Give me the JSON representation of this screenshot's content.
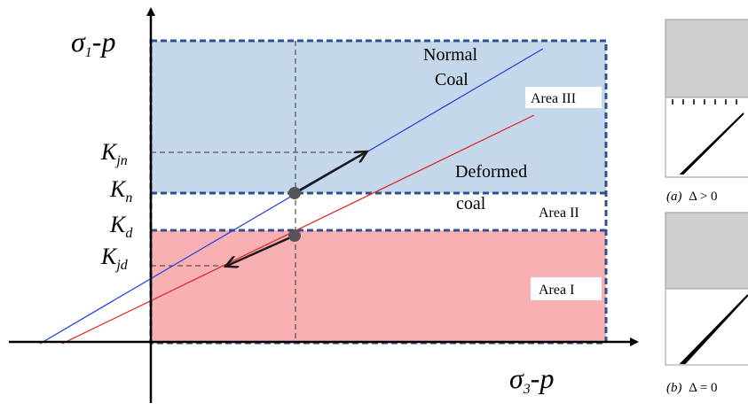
{
  "diagram": {
    "y_axis_label": {
      "symbol": "σ",
      "sub": "1",
      "suffix": "-p"
    },
    "x_axis_label": {
      "symbol": "σ",
      "sub": "3",
      "suffix": "-p"
    },
    "lines": {
      "normal": [
        "Normal",
        "Coal"
      ],
      "deformed": [
        "Deformed",
        "coal"
      ]
    },
    "areas": [
      "Area III",
      "Area II",
      "Area I"
    ],
    "levels": [
      {
        "main": "K",
        "sub": "jn"
      },
      {
        "main": "K",
        "sub": "n"
      },
      {
        "main": "K",
        "sub": "d"
      },
      {
        "main": "K",
        "sub": "jd"
      }
    ],
    "panels": [
      {
        "tag": "(a)",
        "condition": "Δ > 0"
      },
      {
        "tag": "(b)",
        "condition": "Δ = 0"
      }
    ]
  }
}
